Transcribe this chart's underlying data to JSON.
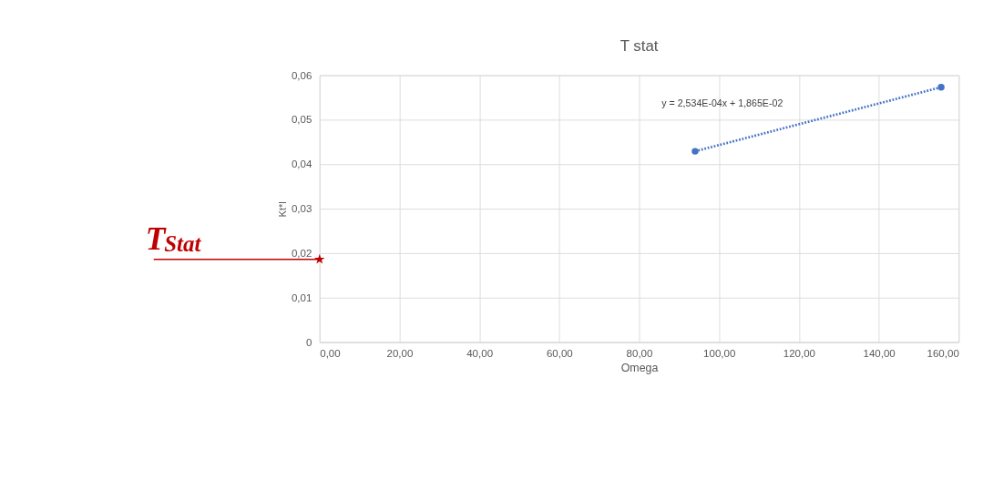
{
  "chart_data": {
    "type": "scatter",
    "title": "T stat",
    "xlabel": "Omega",
    "ylabel": "Kt*I",
    "xlim": [
      0,
      160
    ],
    "ylim": [
      0,
      0.06
    ],
    "xticks": [
      {
        "value": 0,
        "label": "0,00"
      },
      {
        "value": 20,
        "label": "20,00"
      },
      {
        "value": 40,
        "label": "40,00"
      },
      {
        "value": 60,
        "label": "60,00"
      },
      {
        "value": 80,
        "label": "80,00"
      },
      {
        "value": 100,
        "label": "100,00"
      },
      {
        "value": 120,
        "label": "120,00"
      },
      {
        "value": 140,
        "label": "140,00"
      },
      {
        "value": 160,
        "label": "160,00"
      }
    ],
    "yticks": [
      0,
      {
        "value": 0.01,
        "label": "0,01"
      },
      {
        "value": 0.02,
        "label": "0,02"
      },
      {
        "value": 0.03,
        "label": "0,03"
      },
      {
        "value": 0.04,
        "label": "0,04"
      },
      {
        "value": 0.05,
        "label": "0,05"
      },
      {
        "value": 0.06,
        "label": "0,06"
      }
    ],
    "grid": true,
    "marker": "circle",
    "series": [
      {
        "type": "line",
        "line_style": "dotted",
        "marker": "none",
        "color": "#4472c4",
        "x": [
          94,
          155.6
        ],
        "values": [
          0.0429,
          0.0573
        ]
      },
      {
        "color": "#4472c4",
        "x": [
          94,
          155.6
        ],
        "values": [
          0.0429,
          0.0573
        ]
      },
      {
        "marker": "star",
        "color": "#c00000",
        "x": [
          0
        ],
        "values": [
          0.0186
        ]
      }
    ],
    "annotations": [
      "y = 2,534E-04x + 1,865E-02",
      {
        "text": "T$_{Stat}$",
        "x": 0,
        "y": 0.0186
      }
    ]
  }
}
